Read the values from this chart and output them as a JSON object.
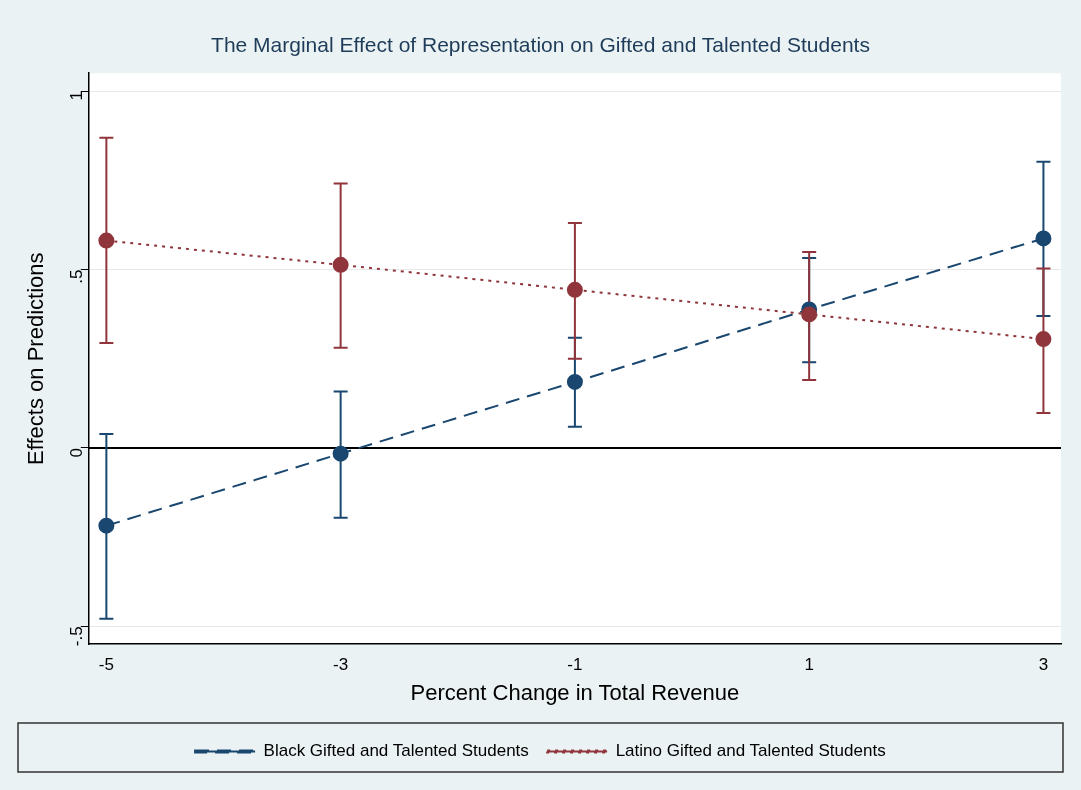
{
  "chart_data": {
    "type": "line",
    "title": "The Marginal Effect of Representation on Gifted and Talented Students",
    "xlabel": "Percent Change in Total Revenue",
    "ylabel": "Effects on Predictions",
    "x": [
      -5,
      -3,
      -1,
      1,
      3
    ],
    "series": [
      {
        "name": "Black Gifted and Talented Students",
        "color": "#1a476f",
        "line_style": "dashed",
        "values": [
          -0.218,
          -0.016,
          0.185,
          0.388,
          0.587
        ],
        "errors": [
          [
            -0.479,
            0.039
          ],
          [
            -0.196,
            0.158
          ],
          [
            0.059,
            0.309
          ],
          [
            0.24,
            0.532
          ],
          [
            0.37,
            0.802
          ]
        ]
      },
      {
        "name": "Latino Gifted and Talented Students",
        "color": "#90353b",
        "line_style": "dotted",
        "values": [
          0.581,
          0.513,
          0.443,
          0.374,
          0.305
        ],
        "errors": [
          [
            0.294,
            0.869
          ],
          [
            0.281,
            0.741
          ],
          [
            0.25,
            0.63
          ],
          [
            0.19,
            0.549
          ],
          [
            0.098,
            0.503
          ]
        ]
      }
    ],
    "xlim": [
      -5.15,
      3.15
    ],
    "ylim": [
      -0.55,
      1.05
    ],
    "xticks": [
      -5,
      -3,
      -1,
      1,
      3
    ],
    "yticks": [
      {
        "value": -0.5,
        "label": "-.5"
      },
      {
        "value": 0,
        "label": "0"
      },
      {
        "value": 0.5,
        "label": ".5"
      },
      {
        "value": 1,
        "label": "1"
      }
    ],
    "ref_lines": [
      {
        "axis": "y",
        "value": 0,
        "color": "#000000"
      }
    ],
    "grid": "y",
    "legend": "bottom",
    "marker": "circle"
  }
}
